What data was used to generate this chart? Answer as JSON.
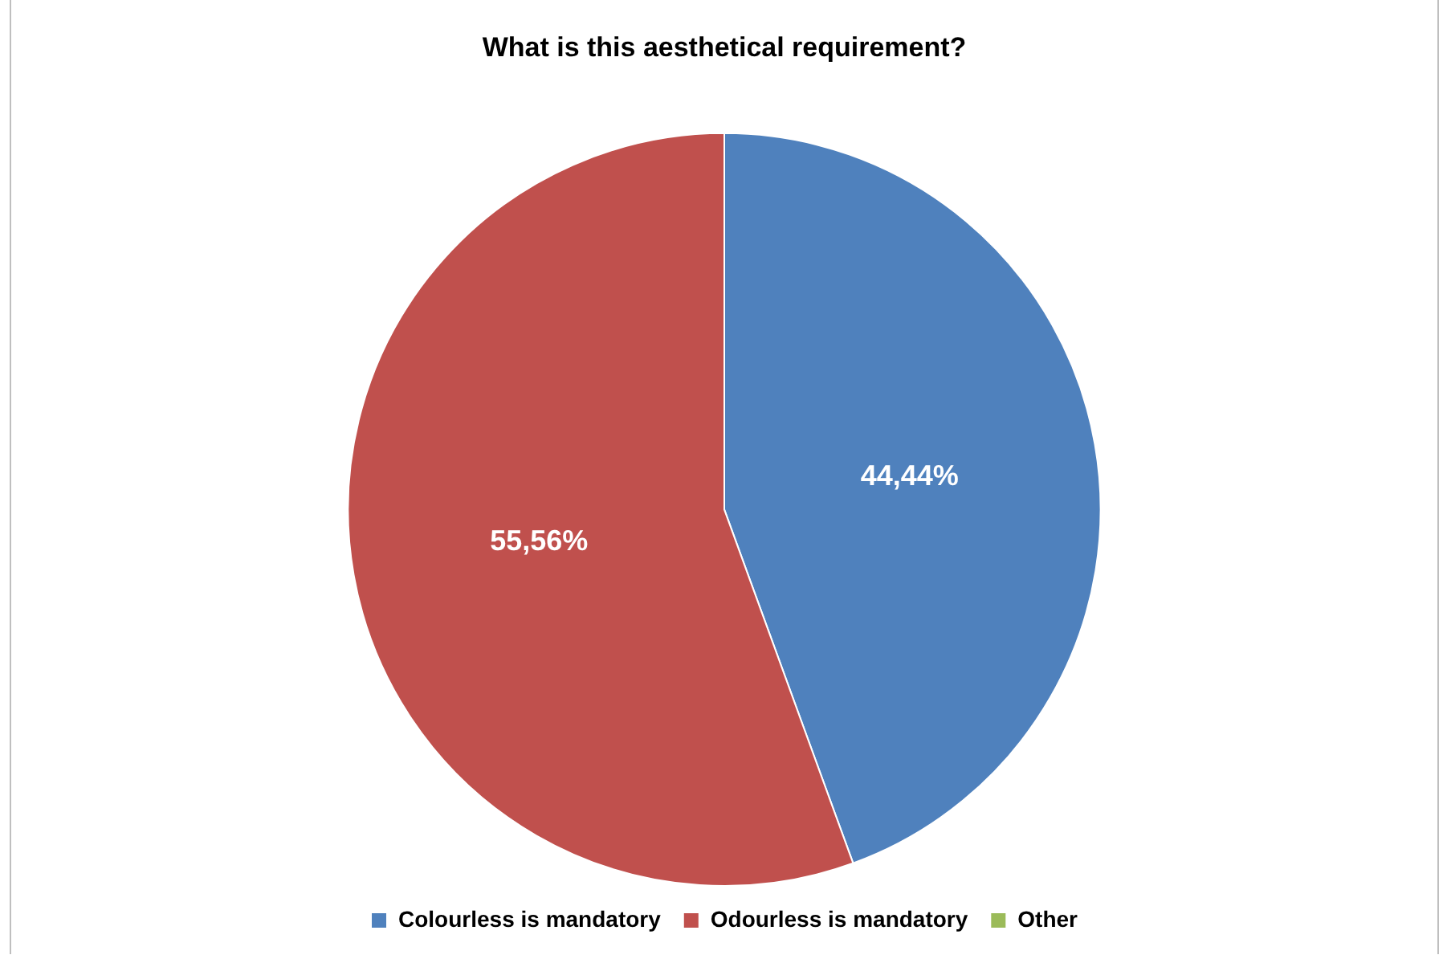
{
  "chart_data": {
    "type": "pie",
    "title": "What is this aesthetical requirement?",
    "categories": [
      "Colourless is mandatory",
      "Odourless is mandatory",
      "Other"
    ],
    "values": [
      44.44,
      55.56,
      0
    ],
    "value_labels": [
      "44,44%",
      "55,56%",
      null
    ],
    "colors": [
      "#4f81bd",
      "#c0504d",
      "#9bbb59"
    ],
    "legend": "bottom"
  }
}
